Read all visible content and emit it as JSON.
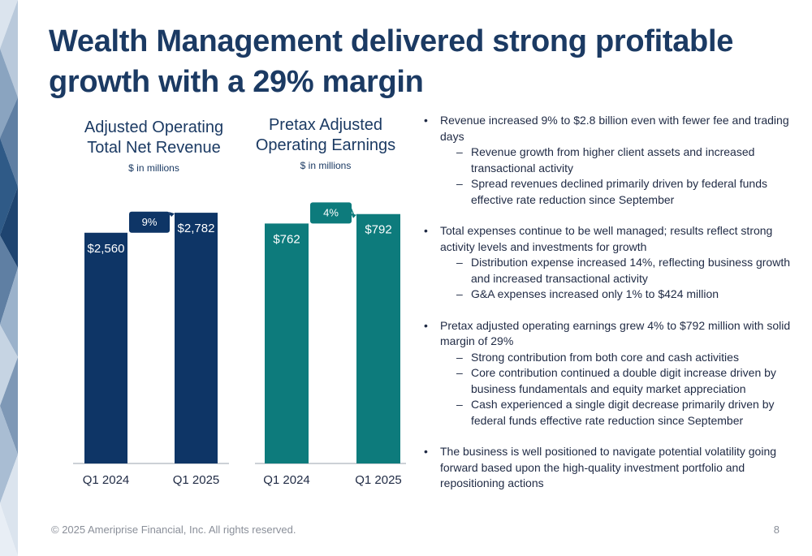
{
  "title": "Wealth Management delivered strong profitable growth with a 29% margin",
  "chart_data": [
    {
      "type": "bar",
      "title": "Adjusted Operating Total Net Revenue",
      "subtitle": "$ in millions",
      "categories": [
        "Q1 2024",
        "Q1 2025"
      ],
      "values": [
        2560,
        2782
      ],
      "value_labels": [
        "$2,560",
        "$2,782"
      ],
      "growth_label": "9%",
      "color": "#0e3566",
      "badge_color": "#0e3566",
      "ylim": [
        0,
        2900
      ]
    },
    {
      "type": "bar",
      "title": "Pretax Adjusted Operating Earnings",
      "subtitle": "$ in millions",
      "categories": [
        "Q1 2024",
        "Q1 2025"
      ],
      "values": [
        762,
        792
      ],
      "value_labels": [
        "$762",
        "$792"
      ],
      "growth_label": "4%",
      "color": "#0d7b7c",
      "badge_color": "#0d7b7c",
      "ylim": [
        0,
        830
      ]
    }
  ],
  "bullets": [
    {
      "text": "Revenue increased 9% to $2.8 billion even with fewer fee and trading days",
      "subs": [
        "Revenue growth from higher client assets and increased transactional activity",
        "Spread revenues declined primarily driven by federal funds effective rate reduction since September"
      ]
    },
    {
      "text": "Total expenses continue to be well managed; results reflect strong activity levels and investments for growth",
      "subs": [
        "Distribution expense increased 14%, reflecting business growth and increased transactional activity",
        "G&A expenses increased only 1% to $424 million"
      ]
    },
    {
      "text": "Pretax adjusted operating earnings grew 4% to $792 million with solid margin of 29%",
      "subs": [
        "Strong contribution from both core and cash activities",
        "Core contribution continued a double digit increase driven by business fundamentals and equity market appreciation",
        "Cash experienced a single digit decrease primarily driven by federal funds effective rate reduction since September"
      ]
    },
    {
      "text": "The business is well positioned to navigate potential volatility going forward based upon the high-quality investment portfolio and repositioning actions",
      "subs": []
    }
  ],
  "bullet_glyph": "•",
  "sub_glyph": "–",
  "footer": "© 2025 Ameriprise Financial, Inc. All rights reserved.",
  "page_number": "8"
}
